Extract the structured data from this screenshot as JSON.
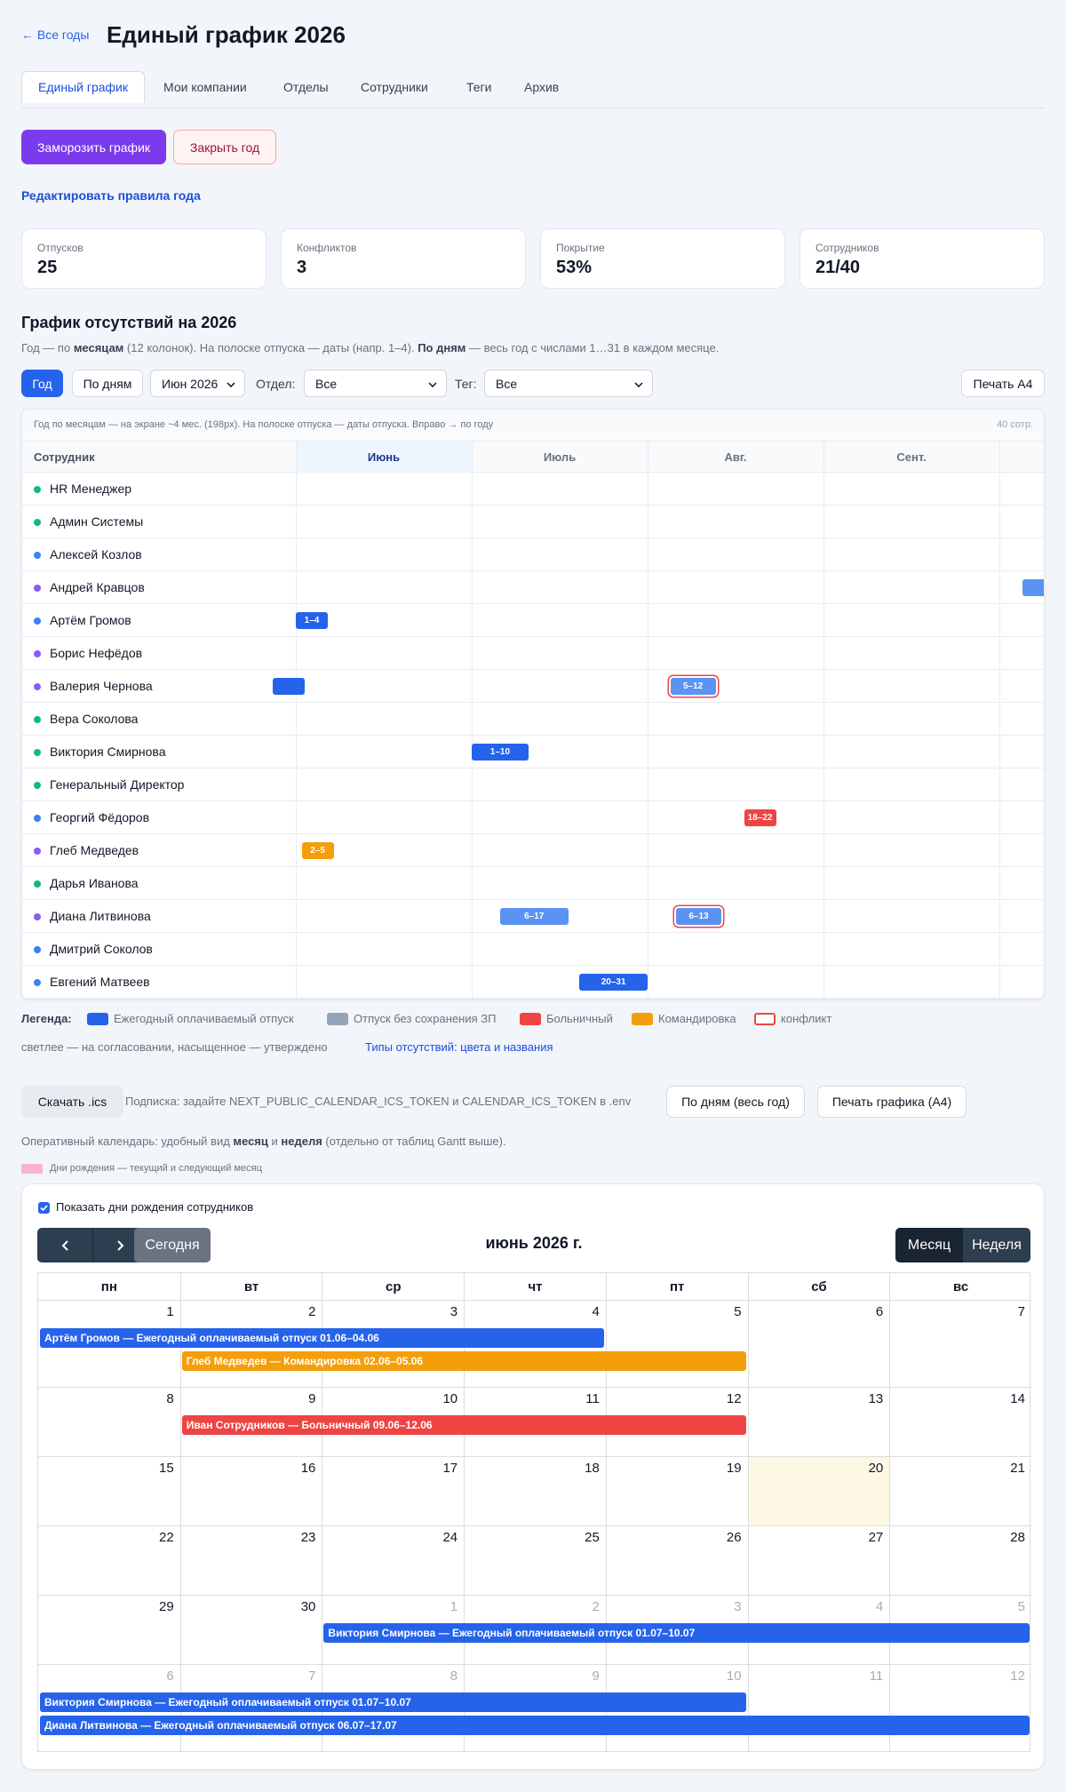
{
  "header": {
    "back": "← Все годы",
    "title": "Единый график 2026"
  },
  "tabs": [
    {
      "label": "Единый график",
      "active": true
    },
    {
      "label": "Мои компании",
      "active": false
    },
    {
      "label": "Отделы",
      "active": false
    },
    {
      "label": "Сотрудники",
      "active": false
    },
    {
      "label": "Теги",
      "active": false
    },
    {
      "label": "Архив",
      "active": false
    }
  ],
  "actions": {
    "freeze": "Заморозить график",
    "close": "Закрыть год"
  },
  "edit_rules_link": "Редактировать правила года",
  "stats": [
    {
      "label": "Отпусков",
      "value": "25"
    },
    {
      "label": "Конфликтов",
      "value": "3"
    },
    {
      "label": "Покрытие",
      "value": "53%"
    },
    {
      "label": "Сотрудников",
      "value": "21/40"
    }
  ],
  "schedule": {
    "title": "График отсутствий на 2026",
    "description": [
      {
        "text": "Год — по ",
        "bold": false
      },
      {
        "text": "месяцам",
        "bold": true
      },
      {
        "text": " (12 колонок). На полоске отпуска — даты (напр. 1–4). ",
        "bold": false
      },
      {
        "text": "По дням",
        "bold": true
      },
      {
        "text": " — весь год с числами 1…31 в каждом месяце.",
        "bold": false
      }
    ],
    "controls": {
      "year": "Год",
      "by_days": "По дням",
      "month_select": "Июн 2026",
      "dept_label": "Отдел:",
      "dept_select": "Все",
      "tag_label": "Тег:",
      "tag_select": "Все",
      "print": "Печать А4"
    },
    "gantt": {
      "info": "Год по месяцам — на экране ~4 мес. (198px). На полоске отпуска — даты отпуска. Вправо → по году",
      "count": "40 сотр.",
      "name_header": "Сотрудник",
      "months": [
        {
          "label": "Июнь",
          "current": true
        },
        {
          "label": "Июль",
          "current": false
        },
        {
          "label": "Авг.",
          "current": false
        },
        {
          "label": "Сент.",
          "current": false
        }
      ],
      "rows": [
        {
          "name": "HR Менеджер",
          "dot": "#10b981",
          "bars": []
        },
        {
          "name": "Админ Системы",
          "dot": "#10b981",
          "bars": []
        },
        {
          "name": "Алексей Козлов",
          "dot": "#3b82f6",
          "bars": []
        },
        {
          "name": "Андрей Кравцов",
          "dot": "#8b5cf6",
          "bars": [
            {
              "col": 4,
              "start": 5,
              "end": 15,
              "days": 31,
              "color": "#5b93f2",
              "conflict": false
            }
          ]
        },
        {
          "name": "Артём Громов",
          "dot": "#3b82f6",
          "bars": [
            {
              "col": 0,
              "start": 1,
              "end": 4,
              "days": 30,
              "label": "1–4",
              "color": "#2563eb",
              "conflict": false
            }
          ]
        },
        {
          "name": "Борис Нефёдов",
          "dot": "#8b5cf6",
          "bars": []
        },
        {
          "name": "Валерия Чернова",
          "dot": "#8b5cf6",
          "bars": [
            {
              "col": -1,
              "start": 28,
              "end": 31,
              "days": 31,
              "color": "#2563eb",
              "conflict": false
            },
            {
              "col": 2,
              "start": 5,
              "end": 12,
              "days": 31,
              "label": "5–12",
              "color": "#5b93f2",
              "conflict": true
            }
          ]
        },
        {
          "name": "Вера Соколова",
          "dot": "#10b981",
          "bars": []
        },
        {
          "name": "Виктория Смирнова",
          "dot": "#10b981",
          "bars": [
            {
              "col": 1,
              "start": 1,
              "end": 10,
              "days": 31,
              "label": "1–10",
              "color": "#2563eb",
              "conflict": false
            }
          ]
        },
        {
          "name": "Генеральный Директор",
          "dot": "#10b981",
          "bars": []
        },
        {
          "name": "Георгий Фёдоров",
          "dot": "#3b82f6",
          "bars": [
            {
              "col": 2,
              "start": 18,
              "end": 22,
              "days": 31,
              "label": "18–22",
              "color": "#ef4444",
              "conflict": false
            }
          ]
        },
        {
          "name": "Глеб Медведев",
          "dot": "#8b5cf6",
          "bars": [
            {
              "col": 0,
              "start": 2,
              "end": 5,
              "days": 30,
              "label": "2–5",
              "color": "#f59e0b",
              "conflict": false
            }
          ]
        },
        {
          "name": "Дарья Иванова",
          "dot": "#10b981",
          "bars": []
        },
        {
          "name": "Диана Литвинова",
          "dot": "#8b5cf6",
          "bars": [
            {
              "col": 1,
              "start": 6,
              "end": 17,
              "days": 31,
              "label": "6–17",
              "color": "#5b93f2",
              "conflict": false
            },
            {
              "col": 2,
              "start": 6,
              "end": 13,
              "days": 31,
              "label": "6–13",
              "color": "#5b93f2",
              "conflict": true
            }
          ]
        },
        {
          "name": "Дмитрий Соколов",
          "dot": "#3b82f6",
          "bars": []
        },
        {
          "name": "Евгений Матвеев",
          "dot": "#3b82f6",
          "bars": [
            {
              "col": 1,
              "start": 20,
              "end": 31,
              "days": 31,
              "label": "20–31",
              "color": "#2563eb",
              "conflict": false
            }
          ]
        }
      ]
    },
    "legend": {
      "title": "Легенда:",
      "items": [
        {
          "label": "Ежегодный оплачиваемый отпуск",
          "color": "#2563eb",
          "outline": false
        },
        {
          "label": "Отпуск без сохранения ЗП",
          "color": "#94a3b8",
          "outline": false
        },
        {
          "label": "Больничный",
          "color": "#ef4444",
          "outline": false
        },
        {
          "label": "Командировка",
          "color": "#f59e0b",
          "outline": false
        },
        {
          "label": "конфликт",
          "color": "#ef4444",
          "outline": true
        }
      ],
      "note": "светлее — на согласовании, насыщенное — утверждено",
      "types_link": "Типы отсутствий: цвета и названия"
    }
  },
  "export": {
    "ics_button": "Скачать .ics",
    "subscription": "Подписка: задайте NEXT_PUBLIC_CALENDAR_ICS_TOKEN и CALENDAR_ICS_TOKEN в .env",
    "by_days_button": "По дням (весь год)",
    "print_button": "Печать графика (A4)"
  },
  "operational": [
    {
      "text": "Оперативный календарь: удобный вид ",
      "bold": false
    },
    {
      "text": "месяц",
      "bold": true
    },
    {
      "text": " и ",
      "bold": false
    },
    {
      "text": "неделя",
      "bold": true
    },
    {
      "text": " (отдельно от таблиц Gantt выше).",
      "bold": false
    }
  ],
  "birthdays_legend": "Дни рождения — текущий и следующий месяц",
  "calendar": {
    "birthdays_checkbox": "Показать дни рождения сотрудников",
    "today_button": "Сегодня",
    "title": "июнь 2026 г.",
    "views": [
      {
        "label": "Месяц",
        "active": true
      },
      {
        "label": "Неделя",
        "active": false
      }
    ],
    "weekdays": [
      "пн",
      "вт",
      "ср",
      "чт",
      "пт",
      "сб",
      "вс"
    ],
    "weeks": [
      {
        "days": [
          {
            "n": 1
          },
          {
            "n": 2
          },
          {
            "n": 3
          },
          {
            "n": 4
          },
          {
            "n": 5
          },
          {
            "n": 6
          },
          {
            "n": 7
          }
        ],
        "events": [
          {
            "start": 0,
            "span": 4,
            "text": "Артём Громов — Ежегодный оплачиваемый отпуск 01.06–04.06",
            "color": "#2563eb"
          },
          {
            "start": 1,
            "span": 4,
            "text": "Глеб Медведев — Командировка 02.06–05.06",
            "color": "#f59e0b"
          }
        ]
      },
      {
        "days": [
          {
            "n": 8
          },
          {
            "n": 9
          },
          {
            "n": 10
          },
          {
            "n": 11
          },
          {
            "n": 12
          },
          {
            "n": 13
          },
          {
            "n": 14
          }
        ],
        "events": [
          {
            "start": 1,
            "span": 4,
            "text": "Иван Сотрудников — Больничный 09.06–12.06",
            "color": "#ef4444"
          }
        ]
      },
      {
        "days": [
          {
            "n": 15
          },
          {
            "n": 16
          },
          {
            "n": 17
          },
          {
            "n": 18
          },
          {
            "n": 19
          },
          {
            "n": 20,
            "today": true
          },
          {
            "n": 21
          }
        ],
        "events": []
      },
      {
        "days": [
          {
            "n": 22
          },
          {
            "n": 23
          },
          {
            "n": 24
          },
          {
            "n": 25
          },
          {
            "n": 26
          },
          {
            "n": 27
          },
          {
            "n": 28
          }
        ],
        "events": []
      },
      {
        "days": [
          {
            "n": 29
          },
          {
            "n": 30
          },
          {
            "n": 1,
            "other": true
          },
          {
            "n": 2,
            "other": true
          },
          {
            "n": 3,
            "other": true
          },
          {
            "n": 4,
            "other": true
          },
          {
            "n": 5,
            "other": true
          }
        ],
        "events": [
          {
            "start": 2,
            "span": 5,
            "text": "Виктория Смирнова — Ежегодный оплачиваемый отпуск 01.07–10.07",
            "color": "#2563eb"
          }
        ]
      },
      {
        "days": [
          {
            "n": 6,
            "other": true
          },
          {
            "n": 7,
            "other": true
          },
          {
            "n": 8,
            "other": true
          },
          {
            "n": 9,
            "other": true
          },
          {
            "n": 10,
            "other": true
          },
          {
            "n": 11,
            "other": true
          },
          {
            "n": 12,
            "other": true
          }
        ],
        "events": [
          {
            "start": 0,
            "span": 5,
            "text": "Виктория Смирнова — Ежегодный оплачиваемый отпуск 01.07–10.07",
            "color": "#2563eb"
          },
          {
            "start": 0,
            "span": 7,
            "text": "Диана Литвинова — Ежегодный оплачиваемый отпуск 06.07–17.07",
            "color": "#2563eb"
          }
        ]
      }
    ]
  }
}
